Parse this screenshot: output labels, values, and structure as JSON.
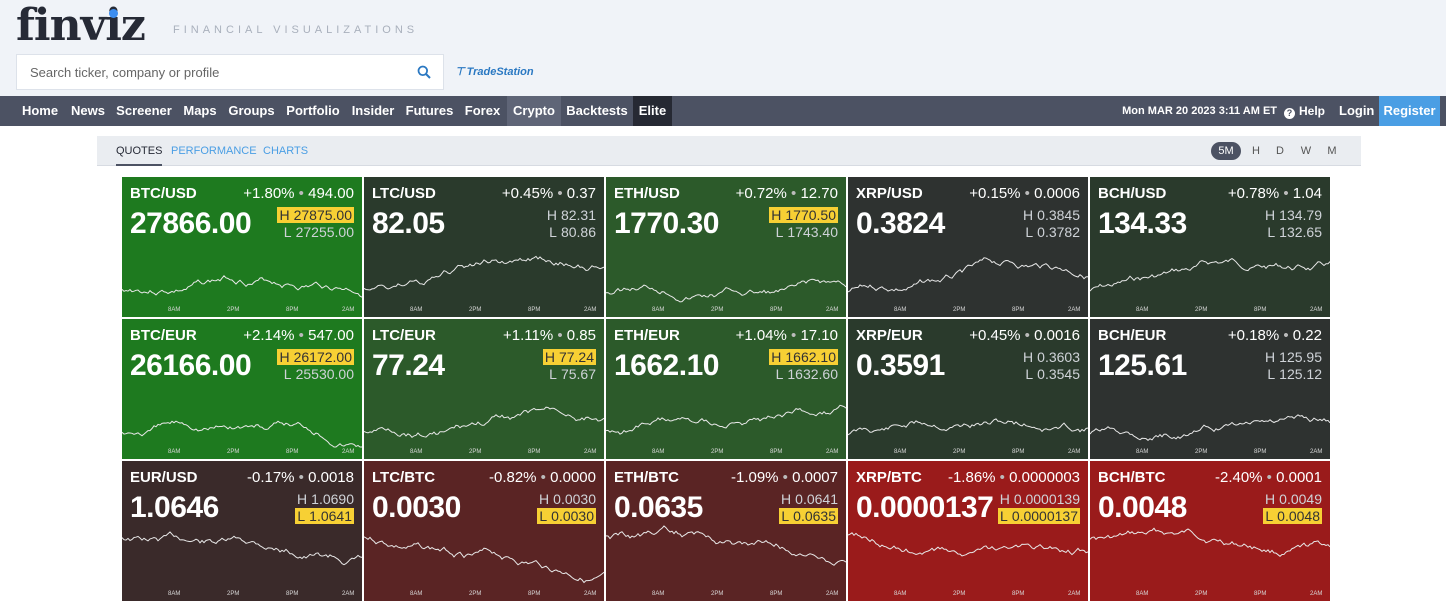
{
  "brand": {
    "logo": "finviz",
    "tagline": "FINANCIAL VISUALIZATIONS",
    "sponsor": "TradeStation"
  },
  "search": {
    "placeholder": "Search ticker, company or profile"
  },
  "nav": {
    "items": [
      "Home",
      "News",
      "Screener",
      "Maps",
      "Groups",
      "Portfolio",
      "Insider",
      "Futures",
      "Forex",
      "Crypto",
      "Backtests",
      "Elite"
    ],
    "active": "Crypto",
    "datetime": "Mon MAR 20 2023 3:11 AM ET",
    "help": "Help",
    "login": "Login",
    "register": "Register"
  },
  "subtabs": {
    "items": [
      "QUOTES",
      "PERFORMANCE",
      "CHARTS"
    ],
    "active": "QUOTES"
  },
  "timeframes": {
    "items": [
      "5M",
      "H",
      "D",
      "W",
      "M"
    ],
    "active": "5M"
  },
  "axis_labels": [
    "8AM",
    "2PM",
    "8PM",
    "2AM"
  ],
  "h_label": "H",
  "l_label": "L",
  "tiles": [
    {
      "pair": "BTC/USD",
      "change": "+1.80%",
      "abs": "494.00",
      "price": "27866.00",
      "high": "27875.00",
      "low": "27255.00",
      "hit": "high",
      "color": "g-strong"
    },
    {
      "pair": "LTC/USD",
      "change": "+0.45%",
      "abs": "0.37",
      "price": "82.05",
      "high": "82.31",
      "low": "80.86",
      "hit": "none",
      "color": "g-dark"
    },
    {
      "pair": "ETH/USD",
      "change": "+0.72%",
      "abs": "12.70",
      "price": "1770.30",
      "high": "1770.50",
      "low": "1743.40",
      "hit": "high",
      "color": "g-mid"
    },
    {
      "pair": "XRP/USD",
      "change": "+0.15%",
      "abs": "0.0006",
      "price": "0.3824",
      "high": "0.3845",
      "low": "0.3782",
      "hit": "none",
      "color": "n-dark"
    },
    {
      "pair": "BCH/USD",
      "change": "+0.78%",
      "abs": "1.04",
      "price": "134.33",
      "high": "134.79",
      "low": "132.65",
      "hit": "none",
      "color": "g-dark"
    },
    {
      "pair": "BTC/EUR",
      "change": "+2.14%",
      "abs": "547.00",
      "price": "26166.00",
      "high": "26172.00",
      "low": "25530.00",
      "hit": "high",
      "color": "g-strong"
    },
    {
      "pair": "LTC/EUR",
      "change": "+1.11%",
      "abs": "0.85",
      "price": "77.24",
      "high": "77.24",
      "low": "75.67",
      "hit": "high",
      "color": "g-mid"
    },
    {
      "pair": "ETH/EUR",
      "change": "+1.04%",
      "abs": "17.10",
      "price": "1662.10",
      "high": "1662.10",
      "low": "1632.60",
      "hit": "high",
      "color": "g-mid"
    },
    {
      "pair": "XRP/EUR",
      "change": "+0.45%",
      "abs": "0.0016",
      "price": "0.3591",
      "high": "0.3603",
      "low": "0.3545",
      "hit": "none",
      "color": "g-dark"
    },
    {
      "pair": "BCH/EUR",
      "change": "+0.18%",
      "abs": "0.22",
      "price": "125.61",
      "high": "125.95",
      "low": "125.12",
      "hit": "none",
      "color": "n-dark"
    },
    {
      "pair": "EUR/USD",
      "change": "-0.17%",
      "abs": "0.0018",
      "price": "1.0646",
      "high": "1.0690",
      "low": "1.0641",
      "hit": "low",
      "color": "r-dark"
    },
    {
      "pair": "LTC/BTC",
      "change": "-0.82%",
      "abs": "0.0000",
      "price": "0.0030",
      "high": "0.0030",
      "low": "0.0030",
      "hit": "low",
      "color": "r-mid"
    },
    {
      "pair": "ETH/BTC",
      "change": "-1.09%",
      "abs": "0.0007",
      "price": "0.0635",
      "high": "0.0641",
      "low": "0.0635",
      "hit": "low",
      "color": "r-mid"
    },
    {
      "pair": "XRP/BTC",
      "change": "-1.86%",
      "abs": "0.0000003",
      "price": "0.0000137",
      "high": "0.0000139",
      "low": "0.0000137",
      "hit": "low",
      "color": "r-strong"
    },
    {
      "pair": "BCH/BTC",
      "change": "-2.40%",
      "abs": "0.0001",
      "price": "0.0048",
      "high": "0.0049",
      "low": "0.0048",
      "hit": "low",
      "color": "r-strong"
    }
  ],
  "colors": {
    "nav_bg": "#4c5263",
    "register_bg": "#4a9ee4",
    "highlight": "#f7d034",
    "link": "#4a9ee4"
  },
  "icons": {
    "search": "search-icon",
    "help": "help-icon",
    "tradestation": "tradestation-logo-icon"
  }
}
